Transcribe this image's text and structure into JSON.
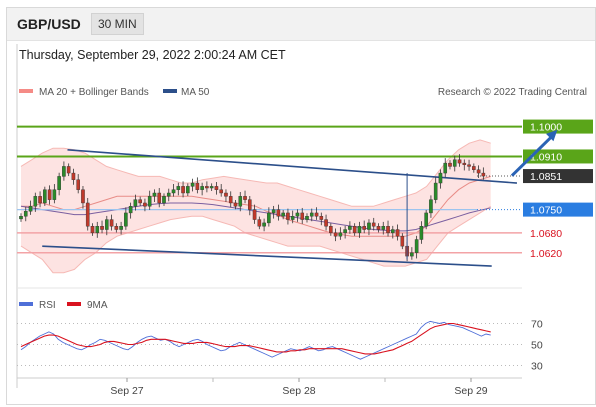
{
  "header": {
    "pair": "GBP/USD",
    "timeframe": "30 MIN"
  },
  "datetime": "Thursday, September 29, 2022 2:00:24 AM CET",
  "credit": "Research © 2022 Trading Central",
  "legend": {
    "bollinger": "MA 20 + Bollinger Bands",
    "ma50": "MA 50",
    "rsi": "RSI",
    "rsi_ma": "9MA"
  },
  "colors": {
    "bollinger": "#f58b86",
    "ma50": "#2c4f8a",
    "resistance": "#5aa519",
    "support": "#2a7de1",
    "pivot": "#d9121f",
    "last": "#333333",
    "rsi": "#4f6fd8",
    "rsi_ma": "#d9121f"
  },
  "chart_data": [
    {
      "type": "candlestick",
      "x_ticks": [
        "Sep 27",
        "Sep 28",
        "Sep 29"
      ],
      "ylim": [
        1.052,
        1.108
      ],
      "levels": [
        {
          "value": 1.1,
          "label": "1.1000",
          "kind": "resistance"
        },
        {
          "value": 1.091,
          "label": "1.0910",
          "kind": "resistance"
        },
        {
          "value": 1.0851,
          "label": "1.0851",
          "kind": "last"
        },
        {
          "value": 1.075,
          "label": "1.0750",
          "kind": "support"
        },
        {
          "value": 1.068,
          "label": "1.0680",
          "kind": "pivot"
        },
        {
          "value": 1.062,
          "label": "1.0620",
          "kind": "pivot"
        }
      ],
      "channel": {
        "upper": [
          [
            0.1,
            1.093
          ],
          [
            0.99,
            1.083
          ]
        ],
        "lower": [
          [
            0.05,
            1.064
          ],
          [
            0.94,
            1.058
          ]
        ]
      },
      "forecast_arrow": [
        [
          0.98,
          1.0852
        ],
        [
          1.07,
          1.099
        ]
      ],
      "close": [
        1.073,
        1.0745,
        1.076,
        1.079,
        1.077,
        1.081,
        1.078,
        1.081,
        1.085,
        1.088,
        1.086,
        1.084,
        1.081,
        1.077,
        1.07,
        1.068,
        1.07,
        1.069,
        1.072,
        1.07,
        1.069,
        1.07,
        1.074,
        1.076,
        1.078,
        1.077,
        1.076,
        1.079,
        1.08,
        1.077,
        1.079,
        1.08,
        1.081,
        1.082,
        1.08,
        1.082,
        1.083,
        1.081,
        1.082,
        1.0815,
        1.082,
        1.081,
        1.08,
        1.079,
        1.077,
        1.076,
        1.079,
        1.078,
        1.075,
        1.072,
        1.07,
        1.071,
        1.074,
        1.075,
        1.073,
        1.074,
        1.072,
        1.073,
        1.074,
        1.072,
        1.073,
        1.074,
        1.073,
        1.072,
        1.07,
        1.068,
        1.067,
        1.068,
        1.069,
        1.07,
        1.068,
        1.07,
        1.069,
        1.071,
        1.07,
        1.069,
        1.07,
        1.068,
        1.069,
        1.067,
        1.064,
        1.061,
        1.062,
        1.066,
        1.07,
        1.074,
        1.078,
        1.083,
        1.086,
        1.089,
        1.088,
        1.09,
        1.089,
        1.0885,
        1.088,
        1.087,
        1.086,
        1.0851
      ],
      "bollinger_upper": [
        1.088,
        1.09,
        1.092,
        1.0935,
        1.0935,
        1.093,
        1.092,
        1.09,
        1.088,
        1.087,
        1.086,
        1.085,
        1.085,
        1.085,
        1.084,
        1.083,
        1.083,
        1.084,
        1.0845,
        1.085,
        1.0845,
        1.084,
        1.0835,
        1.083,
        1.083,
        1.082,
        1.081,
        1.08,
        1.079,
        1.078,
        1.077,
        1.076,
        1.076,
        1.076,
        1.077,
        1.078,
        1.079,
        1.08,
        1.082,
        1.086,
        1.09,
        1.093,
        1.095,
        1.096,
        1.095
      ],
      "bollinger_lower": [
        1.064,
        1.062,
        1.06,
        1.056,
        1.056,
        1.057,
        1.06,
        1.062,
        1.065,
        1.067,
        1.068,
        1.069,
        1.07,
        1.071,
        1.072,
        1.0725,
        1.073,
        1.073,
        1.072,
        1.071,
        1.07,
        1.068,
        1.067,
        1.066,
        1.065,
        1.064,
        1.064,
        1.064,
        1.064,
        1.063,
        1.062,
        1.061,
        1.06,
        1.059,
        1.058,
        1.058,
        1.058,
        1.059,
        1.06,
        1.064,
        1.068,
        1.07,
        1.072,
        1.074,
        1.076
      ],
      "bollinger_mid": [
        1.076,
        1.076,
        1.077,
        1.076,
        1.075,
        1.075,
        1.076,
        1.077,
        1.078,
        1.079,
        1.079,
        1.079,
        1.079,
        1.079,
        1.079,
        1.079,
        1.079,
        1.0785,
        1.078,
        1.0775,
        1.077,
        1.0765,
        1.076,
        1.0745,
        1.0735,
        1.072,
        1.071,
        1.07,
        1.069,
        1.068,
        1.0675,
        1.067,
        1.067,
        1.067,
        1.067,
        1.067,
        1.067,
        1.068,
        1.07,
        1.074,
        1.078,
        1.081,
        1.083,
        1.084,
        1.085
      ],
      "ma50": [
        1.076,
        1.0755,
        1.075,
        1.0745,
        1.074,
        1.0735,
        1.0735,
        1.074,
        1.0745,
        1.075,
        1.0755,
        1.076,
        1.0765,
        1.0768,
        1.077,
        1.077,
        1.077,
        1.0768,
        1.0765,
        1.076,
        1.0755,
        1.075,
        1.0745,
        1.074,
        1.0735,
        1.073,
        1.0725,
        1.072,
        1.0715,
        1.071,
        1.0705,
        1.07,
        1.0695,
        1.069,
        1.0688,
        1.0686,
        1.0686,
        1.069,
        1.07,
        1.071,
        1.072,
        1.073,
        1.074,
        1.0748,
        1.0755
      ]
    },
    {
      "type": "line",
      "ylim": [
        20,
        80
      ],
      "y_ticks": [
        70,
        50,
        30
      ],
      "series": [
        {
          "name": "RSI",
          "values": [
            45,
            48,
            52,
            55,
            58,
            60,
            62,
            60,
            55,
            52,
            50,
            48,
            46,
            45,
            47,
            50,
            52,
            55,
            54,
            52,
            50,
            48,
            46,
            45,
            48,
            52,
            55,
            57,
            58,
            56,
            54,
            55,
            53,
            50,
            48,
            50,
            52,
            54,
            55,
            53,
            50,
            48,
            46,
            44,
            45,
            48,
            50,
            52,
            50,
            48,
            46,
            44,
            42,
            40,
            38,
            40,
            42,
            44,
            46,
            45,
            44,
            46,
            48,
            46,
            44,
            45,
            47,
            48,
            46,
            44,
            42,
            40,
            38,
            36,
            38,
            40,
            42,
            44,
            46,
            48,
            50,
            52,
            54,
            56,
            58,
            60,
            66,
            70,
            72,
            71,
            70,
            71,
            69,
            68,
            67,
            66,
            64,
            62,
            60,
            58,
            60,
            59
          ]
        },
        {
          "name": "9MA",
          "values": [
            48,
            50,
            52,
            54,
            56,
            58,
            59,
            59,
            58,
            56,
            54,
            52,
            50,
            49,
            48,
            48,
            49,
            50,
            52,
            53,
            53,
            52,
            51,
            50,
            50,
            51,
            52,
            54,
            55,
            55,
            55,
            55,
            54,
            53,
            52,
            51,
            51,
            51,
            52,
            52,
            52,
            51,
            50,
            49,
            48,
            48,
            48,
            49,
            49,
            49,
            48,
            47,
            46,
            45,
            44,
            43,
            43,
            43,
            44,
            44,
            45,
            45,
            46,
            46,
            46,
            46,
            46,
            46,
            46,
            46,
            45,
            44,
            43,
            42,
            41,
            41,
            41,
            42,
            43,
            44,
            45,
            47,
            49,
            51,
            53,
            56,
            59,
            62,
            65,
            67,
            68,
            69,
            70,
            70,
            69,
            68,
            67,
            66,
            65,
            64,
            63,
            62
          ]
        }
      ]
    }
  ]
}
